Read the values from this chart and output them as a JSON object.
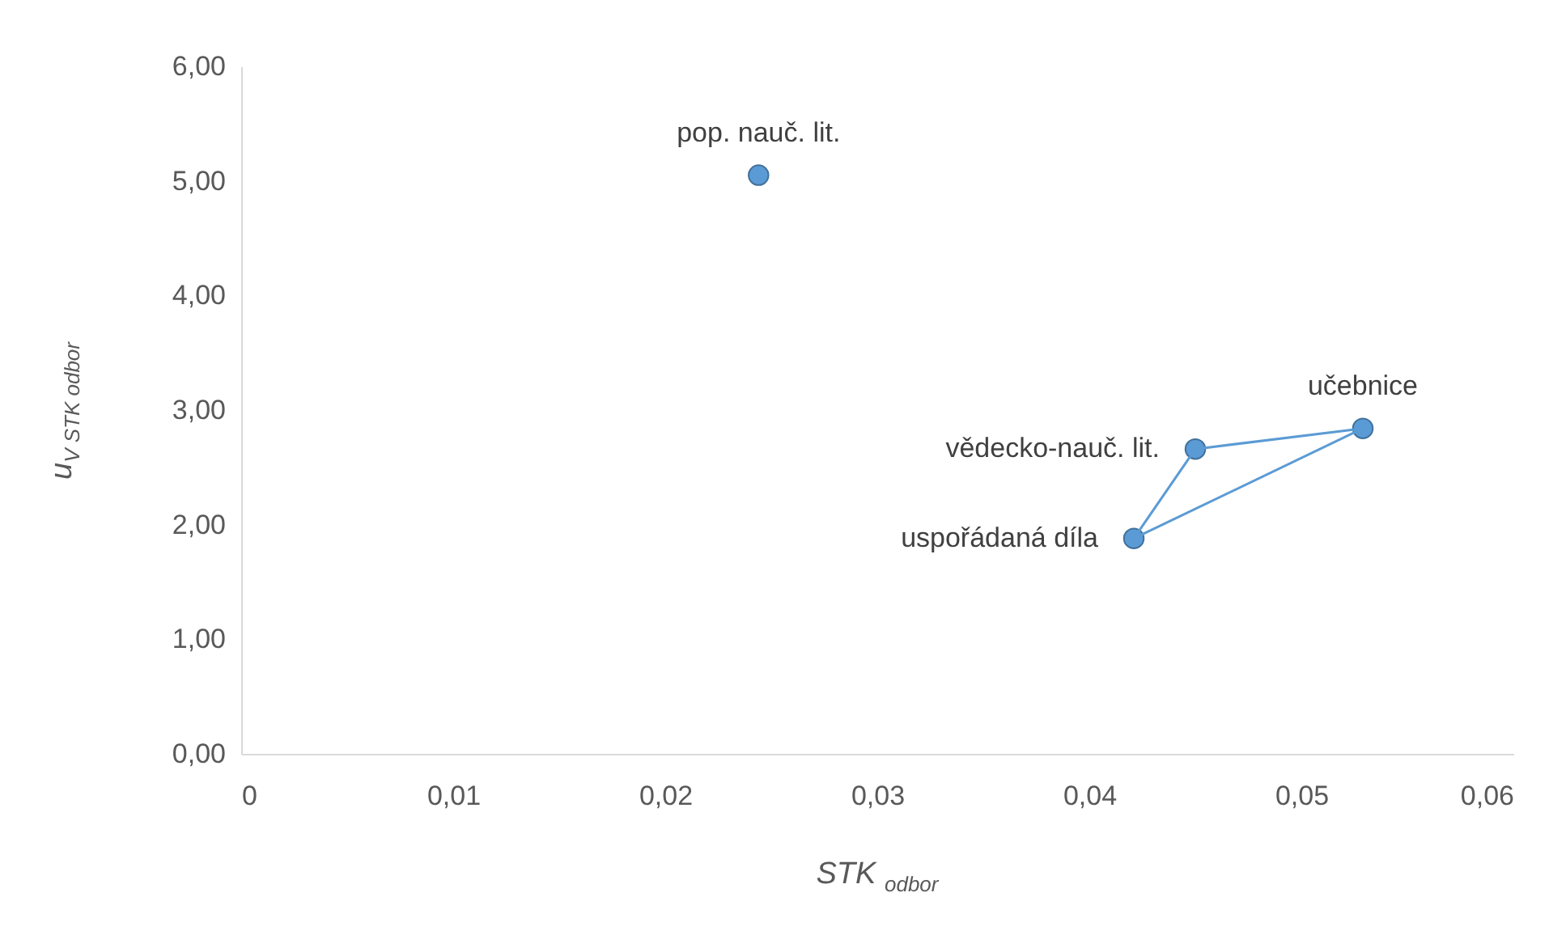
{
  "chart_data": {
    "type": "scatter",
    "xlabel": "STK $_{odbor}$",
    "ylabel": "u$_{V STK odbor}$",
    "xlim": [
      0,
      0.06
    ],
    "xticks": [
      0,
      {
        "value": 0.01,
        "label": "0,01"
      },
      {
        "value": 0.02,
        "label": "0,02"
      },
      {
        "value": 0.03,
        "label": "0,03"
      },
      {
        "value": 0.04,
        "label": "0,04"
      },
      {
        "value": 0.05,
        "label": "0,05"
      },
      {
        "value": 0.06,
        "label": "0,06"
      }
    ],
    "ylim": [
      0,
      6
    ],
    "yticks": [
      {
        "value": 0,
        "label": "0,00"
      },
      {
        "value": 1,
        "label": "1,00"
      },
      {
        "value": 2,
        "label": "2,00"
      },
      {
        "value": 3,
        "label": "3,00"
      },
      {
        "value": 4,
        "label": "4,00"
      },
      {
        "value": 5,
        "label": "5,00"
      },
      {
        "value": 6,
        "label": "6,00"
      }
    ],
    "grid": false,
    "series": [
      {
        "color": "#5b9bd5",
        "marker": "circle",
        "x": [
          0.0244,
          0.0529,
          0.045,
          0.0421
        ],
        "values": [
          5.05,
          2.84,
          2.66,
          1.88
        ]
      },
      {
        "type": "line",
        "color": "#5b9bd5",
        "x": [
          0.045,
          0.0529
        ],
        "values": [
          2.66,
          2.84
        ]
      },
      {
        "type": "line",
        "color": "#5b9bd5",
        "x": [
          0.0421,
          0.0529
        ],
        "values": [
          1.88,
          2.84
        ]
      },
      {
        "type": "line",
        "color": "#5b9bd5",
        "x": [
          0.0421,
          0.045
        ],
        "values": [
          1.88,
          2.66
        ]
      }
    ],
    "annotations": [
      {
        "text": "pop. nauč. lit.",
        "x": 0.0244,
        "y": 5.05
      },
      {
        "text": "učebnice",
        "x": 0.0529,
        "y": 2.84
      },
      {
        "text": "vědecko-nauč. lit.",
        "x": 0.045,
        "y": 2.66
      },
      {
        "text": "uspořádaná díla",
        "x": 0.0421,
        "y": 1.88
      }
    ]
  }
}
